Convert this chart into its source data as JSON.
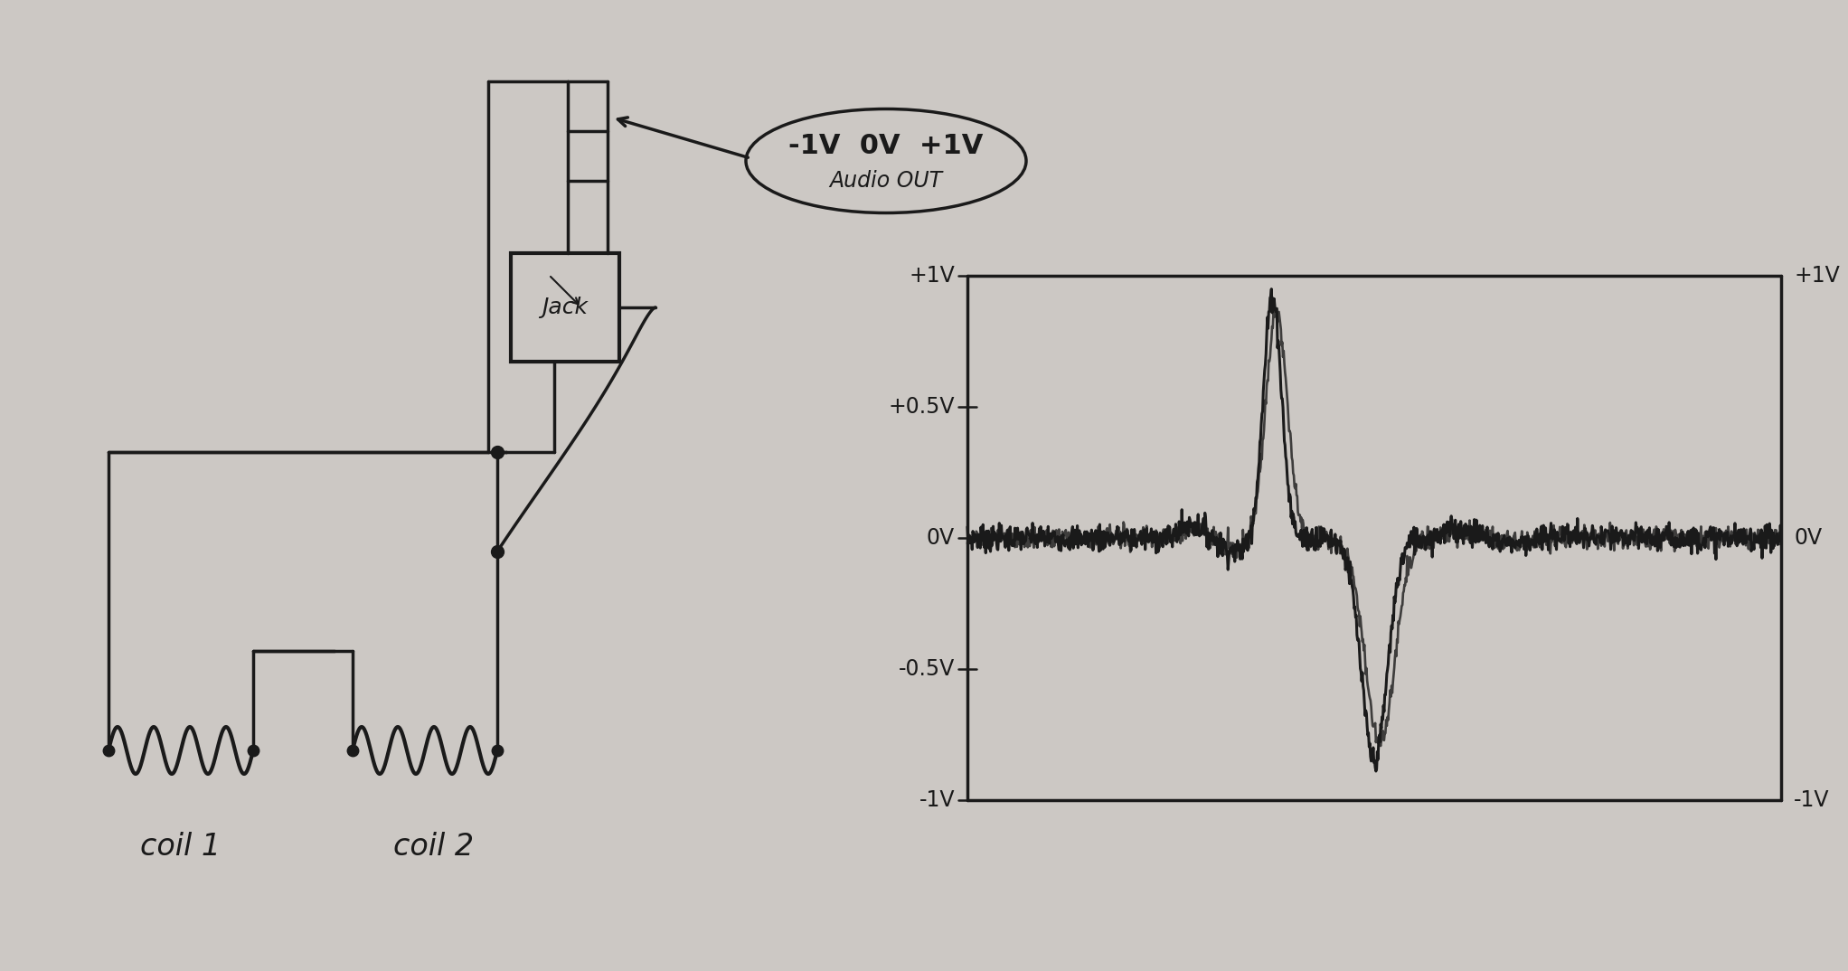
{
  "bg_color": "#ccc8c4",
  "line_color": "#1a1a1a",
  "line_width": 2.5,
  "coil1_label": "coil 1",
  "coil2_label": "coil 2",
  "jack_label": "Jack",
  "audio_line1": "-1V  0V  +1V",
  "audio_line2": "Audio OUT",
  "plot_ylabels": [
    "+1V",
    "+0.5V",
    "0V",
    "-0.5V",
    "-1V"
  ],
  "plot_ylabels_right": [
    "+1V",
    "0V",
    "-1V"
  ],
  "figsize": [
    19.94,
    10.54
  ],
  "dpi": 100
}
